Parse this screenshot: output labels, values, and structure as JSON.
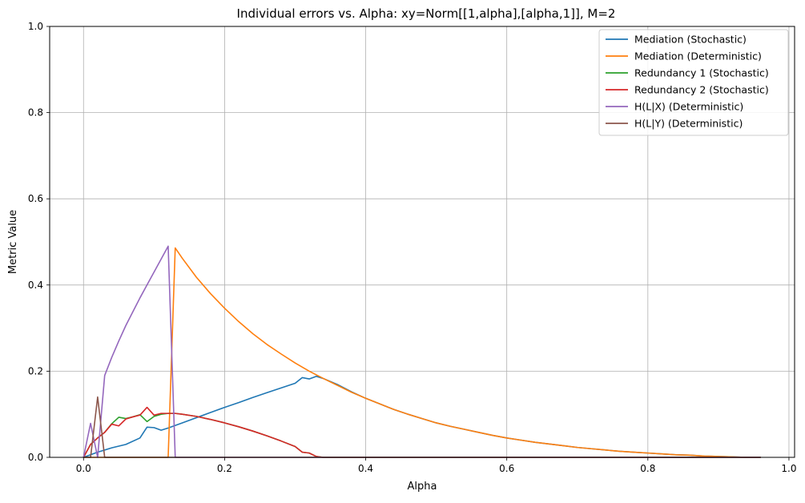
{
  "chart_data": {
    "type": "line",
    "title": "Individual errors vs. Alpha: xy=Norm[[1,alpha],[alpha,1]], M=2",
    "xlabel": "Alpha",
    "ylabel": "Metric Value",
    "xlim": [
      -0.048,
      1.008
    ],
    "ylim": [
      0,
      1
    ],
    "xticks": [
      0.0,
      0.2,
      0.4,
      0.6,
      0.8,
      1.0
    ],
    "xtick_labels": [
      "0.0",
      "0.2",
      "0.4",
      "0.6",
      "0.8",
      "1.0"
    ],
    "yticks": [
      0.0,
      0.2,
      0.4,
      0.6,
      0.8,
      1.0
    ],
    "ytick_labels": [
      "0.0",
      "0.2",
      "0.4",
      "0.6",
      "0.8",
      "1.0"
    ],
    "grid": true,
    "legend_position": "top-right",
    "series": [
      {
        "name": "Mediation (Stochastic)",
        "color": "#1f77b4",
        "points": [
          [
            0.0,
            0.0
          ],
          [
            0.02,
            0.012
          ],
          [
            0.04,
            0.022
          ],
          [
            0.06,
            0.03
          ],
          [
            0.08,
            0.045
          ],
          [
            0.09,
            0.07
          ],
          [
            0.1,
            0.069
          ],
          [
            0.11,
            0.063
          ],
          [
            0.12,
            0.068
          ],
          [
            0.14,
            0.08
          ],
          [
            0.16,
            0.092
          ],
          [
            0.18,
            0.104
          ],
          [
            0.2,
            0.116
          ],
          [
            0.22,
            0.127
          ],
          [
            0.24,
            0.139
          ],
          [
            0.26,
            0.15
          ],
          [
            0.28,
            0.161
          ],
          [
            0.3,
            0.172
          ],
          [
            0.31,
            0.185
          ],
          [
            0.32,
            0.182
          ],
          [
            0.33,
            0.188
          ],
          [
            0.34,
            0.183
          ],
          [
            0.36,
            0.169
          ],
          [
            0.38,
            0.152
          ],
          [
            0.4,
            0.137
          ],
          [
            0.42,
            0.124
          ],
          [
            0.44,
            0.111
          ],
          [
            0.46,
            0.1
          ],
          [
            0.48,
            0.09
          ],
          [
            0.5,
            0.08
          ],
          [
            0.52,
            0.072
          ],
          [
            0.54,
            0.065
          ],
          [
            0.56,
            0.058
          ],
          [
            0.58,
            0.051
          ],
          [
            0.6,
            0.045
          ],
          [
            0.62,
            0.04
          ],
          [
            0.64,
            0.035
          ],
          [
            0.66,
            0.031
          ],
          [
            0.68,
            0.027
          ],
          [
            0.7,
            0.023
          ],
          [
            0.72,
            0.02
          ],
          [
            0.74,
            0.017
          ],
          [
            0.76,
            0.014
          ],
          [
            0.78,
            0.012
          ],
          [
            0.8,
            0.01
          ],
          [
            0.82,
            0.008
          ],
          [
            0.84,
            0.006
          ],
          [
            0.86,
            0.005
          ],
          [
            0.88,
            0.003
          ],
          [
            0.9,
            0.002
          ],
          [
            0.92,
            0.001
          ],
          [
            0.94,
            0.0
          ],
          [
            0.96,
            0.0
          ]
        ]
      },
      {
        "name": "Mediation (Deterministic)",
        "color": "#ff7f0e",
        "points": [
          [
            0.0,
            0.0
          ],
          [
            0.1,
            0.0
          ],
          [
            0.12,
            0.0
          ],
          [
            0.13,
            0.486
          ],
          [
            0.14,
            0.462
          ],
          [
            0.16,
            0.418
          ],
          [
            0.18,
            0.38
          ],
          [
            0.2,
            0.346
          ],
          [
            0.22,
            0.315
          ],
          [
            0.24,
            0.287
          ],
          [
            0.26,
            0.262
          ],
          [
            0.28,
            0.24
          ],
          [
            0.3,
            0.219
          ],
          [
            0.32,
            0.2
          ],
          [
            0.34,
            0.183
          ],
          [
            0.36,
            0.167
          ],
          [
            0.38,
            0.151
          ],
          [
            0.4,
            0.137
          ],
          [
            0.42,
            0.124
          ],
          [
            0.44,
            0.111
          ],
          [
            0.46,
            0.1
          ],
          [
            0.48,
            0.09
          ],
          [
            0.5,
            0.08
          ],
          [
            0.52,
            0.072
          ],
          [
            0.54,
            0.065
          ],
          [
            0.56,
            0.058
          ],
          [
            0.58,
            0.051
          ],
          [
            0.6,
            0.045
          ],
          [
            0.62,
            0.04
          ],
          [
            0.64,
            0.035
          ],
          [
            0.66,
            0.031
          ],
          [
            0.68,
            0.027
          ],
          [
            0.7,
            0.023
          ],
          [
            0.72,
            0.02
          ],
          [
            0.74,
            0.017
          ],
          [
            0.76,
            0.014
          ],
          [
            0.78,
            0.012
          ],
          [
            0.8,
            0.01
          ],
          [
            0.82,
            0.008
          ],
          [
            0.84,
            0.006
          ],
          [
            0.86,
            0.005
          ],
          [
            0.88,
            0.003
          ],
          [
            0.9,
            0.002
          ],
          [
            0.92,
            0.001
          ],
          [
            0.94,
            0.0
          ],
          [
            0.96,
            0.0
          ]
        ]
      },
      {
        "name": "Redundancy 1 (Stochastic)",
        "color": "#2ca02c",
        "points": [
          [
            0.0,
            0.0
          ],
          [
            0.01,
            0.03
          ],
          [
            0.02,
            0.045
          ],
          [
            0.03,
            0.058
          ],
          [
            0.04,
            0.078
          ],
          [
            0.05,
            0.093
          ],
          [
            0.06,
            0.09
          ],
          [
            0.07,
            0.094
          ],
          [
            0.08,
            0.099
          ],
          [
            0.09,
            0.083
          ],
          [
            0.1,
            0.095
          ],
          [
            0.11,
            0.1
          ],
          [
            0.12,
            0.102
          ],
          [
            0.13,
            0.102
          ],
          [
            0.14,
            0.1
          ],
          [
            0.16,
            0.095
          ],
          [
            0.18,
            0.088
          ],
          [
            0.2,
            0.08
          ],
          [
            0.22,
            0.071
          ],
          [
            0.24,
            0.061
          ],
          [
            0.26,
            0.05
          ],
          [
            0.28,
            0.038
          ],
          [
            0.3,
            0.025
          ],
          [
            0.31,
            0.012
          ],
          [
            0.32,
            0.01
          ],
          [
            0.33,
            0.002
          ],
          [
            0.34,
            0.0
          ],
          [
            0.4,
            0.0
          ],
          [
            0.5,
            0.0
          ],
          [
            0.6,
            0.0
          ],
          [
            0.7,
            0.0
          ],
          [
            0.8,
            0.0
          ],
          [
            0.9,
            0.0
          ],
          [
            0.96,
            0.0
          ]
        ]
      },
      {
        "name": "Redundancy 2 (Stochastic)",
        "color": "#d62728",
        "points": [
          [
            0.0,
            0.0
          ],
          [
            0.01,
            0.03
          ],
          [
            0.02,
            0.045
          ],
          [
            0.03,
            0.058
          ],
          [
            0.04,
            0.077
          ],
          [
            0.05,
            0.073
          ],
          [
            0.06,
            0.089
          ],
          [
            0.07,
            0.094
          ],
          [
            0.08,
            0.098
          ],
          [
            0.09,
            0.116
          ],
          [
            0.1,
            0.098
          ],
          [
            0.11,
            0.102
          ],
          [
            0.12,
            0.102
          ],
          [
            0.13,
            0.102
          ],
          [
            0.14,
            0.1
          ],
          [
            0.16,
            0.095
          ],
          [
            0.18,
            0.088
          ],
          [
            0.2,
            0.08
          ],
          [
            0.22,
            0.071
          ],
          [
            0.24,
            0.061
          ],
          [
            0.26,
            0.05
          ],
          [
            0.28,
            0.038
          ],
          [
            0.3,
            0.025
          ],
          [
            0.31,
            0.012
          ],
          [
            0.32,
            0.01
          ],
          [
            0.33,
            0.002
          ],
          [
            0.34,
            0.0
          ],
          [
            0.4,
            0.0
          ],
          [
            0.5,
            0.0
          ],
          [
            0.6,
            0.0
          ],
          [
            0.7,
            0.0
          ],
          [
            0.8,
            0.0
          ],
          [
            0.9,
            0.0
          ],
          [
            0.96,
            0.0
          ]
        ]
      },
      {
        "name": "H(L|X) (Deterministic)",
        "color": "#9467bd",
        "points": [
          [
            0.0,
            0.0
          ],
          [
            0.01,
            0.079
          ],
          [
            0.02,
            0.0
          ],
          [
            0.03,
            0.19
          ],
          [
            0.04,
            0.232
          ],
          [
            0.05,
            0.27
          ],
          [
            0.06,
            0.306
          ],
          [
            0.07,
            0.338
          ],
          [
            0.08,
            0.37
          ],
          [
            0.09,
            0.4
          ],
          [
            0.1,
            0.43
          ],
          [
            0.11,
            0.46
          ],
          [
            0.12,
            0.49
          ],
          [
            0.13,
            0.0
          ],
          [
            0.14,
            0.0
          ],
          [
            0.2,
            0.0
          ],
          [
            0.3,
            0.0
          ],
          [
            0.4,
            0.0
          ],
          [
            0.5,
            0.0
          ],
          [
            0.6,
            0.0
          ],
          [
            0.7,
            0.0
          ],
          [
            0.8,
            0.0
          ],
          [
            0.9,
            0.0
          ],
          [
            0.96,
            0.0
          ]
        ]
      },
      {
        "name": "H(L|Y) (Deterministic)",
        "color": "#8c564b",
        "points": [
          [
            0.0,
            0.0
          ],
          [
            0.01,
            0.0
          ],
          [
            0.02,
            0.14
          ],
          [
            0.03,
            0.0
          ],
          [
            0.04,
            0.0
          ],
          [
            0.1,
            0.0
          ],
          [
            0.2,
            0.0
          ],
          [
            0.3,
            0.0
          ],
          [
            0.4,
            0.0
          ],
          [
            0.5,
            0.0
          ],
          [
            0.6,
            0.0
          ],
          [
            0.7,
            0.0
          ],
          [
            0.8,
            0.0
          ],
          [
            0.9,
            0.0
          ],
          [
            0.96,
            0.0
          ]
        ]
      }
    ]
  }
}
